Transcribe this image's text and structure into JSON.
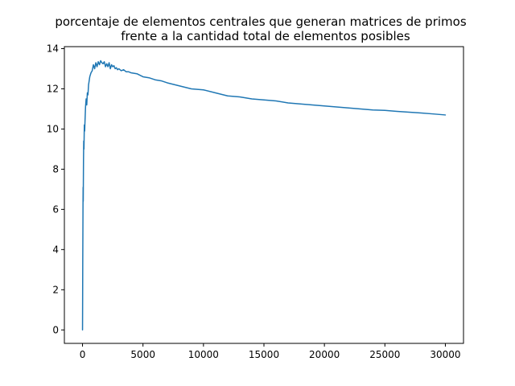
{
  "chart_data": {
    "type": "line",
    "title_lines": [
      "porcentaje de elementos centrales que generan matrices de primos",
      "frente a la cantidad total de elementos posibles"
    ],
    "xlabel": "",
    "ylabel": "",
    "xlim": [
      -1500,
      31500
    ],
    "ylim": [
      -0.67,
      14.1
    ],
    "x_ticks": [
      0,
      5000,
      10000,
      15000,
      20000,
      25000,
      30000
    ],
    "x_tick_labels": [
      "0",
      "5000",
      "10000",
      "15000",
      "20000",
      "25000",
      "30000"
    ],
    "y_ticks": [
      0,
      2,
      4,
      6,
      8,
      10,
      12,
      14
    ],
    "y_tick_labels": [
      "0",
      "2",
      "4",
      "6",
      "8",
      "10",
      "12",
      "14"
    ],
    "grid": false,
    "legend": "none",
    "line_color": "#1f77b4",
    "series": [
      {
        "x": [
          0,
          10,
          20,
          30,
          40,
          50,
          60,
          80,
          100,
          120,
          150,
          180,
          200,
          250,
          300,
          350,
          400,
          450,
          500,
          600,
          700,
          800,
          900,
          1000,
          1100,
          1200,
          1300,
          1400,
          1500,
          1600,
          1700,
          1800,
          1900,
          2000,
          2100,
          2200,
          2300,
          2400,
          2500,
          2600,
          2700,
          2800,
          2900,
          3000,
          3200,
          3400,
          3600,
          3800,
          4000,
          4500,
          5000,
          5500,
          6000,
          6500,
          7000,
          8000,
          9000,
          10000,
          11000,
          12000,
          13000,
          14000,
          15000,
          16000,
          17000,
          18000,
          19000,
          20000,
          21000,
          22000,
          23000,
          24000,
          25000,
          26000,
          27000,
          28000,
          29000,
          30000
        ],
        "y": [
          0.0,
          1.6,
          3.5,
          4.8,
          6.2,
          7.1,
          6.4,
          8.4,
          9.4,
          9.0,
          10.2,
          9.9,
          10.3,
          11.1,
          11.5,
          11.2,
          11.8,
          11.7,
          12.2,
          12.6,
          12.8,
          12.9,
          13.2,
          13.0,
          13.3,
          13.1,
          13.35,
          13.2,
          13.4,
          13.3,
          13.25,
          13.35,
          13.1,
          13.25,
          13.1,
          13.3,
          13.0,
          13.2,
          13.1,
          13.15,
          13.0,
          13.05,
          12.95,
          13.0,
          12.9,
          12.95,
          12.85,
          12.85,
          12.8,
          12.75,
          12.6,
          12.55,
          12.45,
          12.4,
          12.3,
          12.15,
          12.0,
          11.95,
          11.8,
          11.65,
          11.6,
          11.5,
          11.45,
          11.4,
          11.3,
          11.25,
          11.2,
          11.15,
          11.1,
          11.05,
          11.0,
          10.95,
          10.93,
          10.88,
          10.84,
          10.8,
          10.75,
          10.7
        ]
      }
    ]
  }
}
